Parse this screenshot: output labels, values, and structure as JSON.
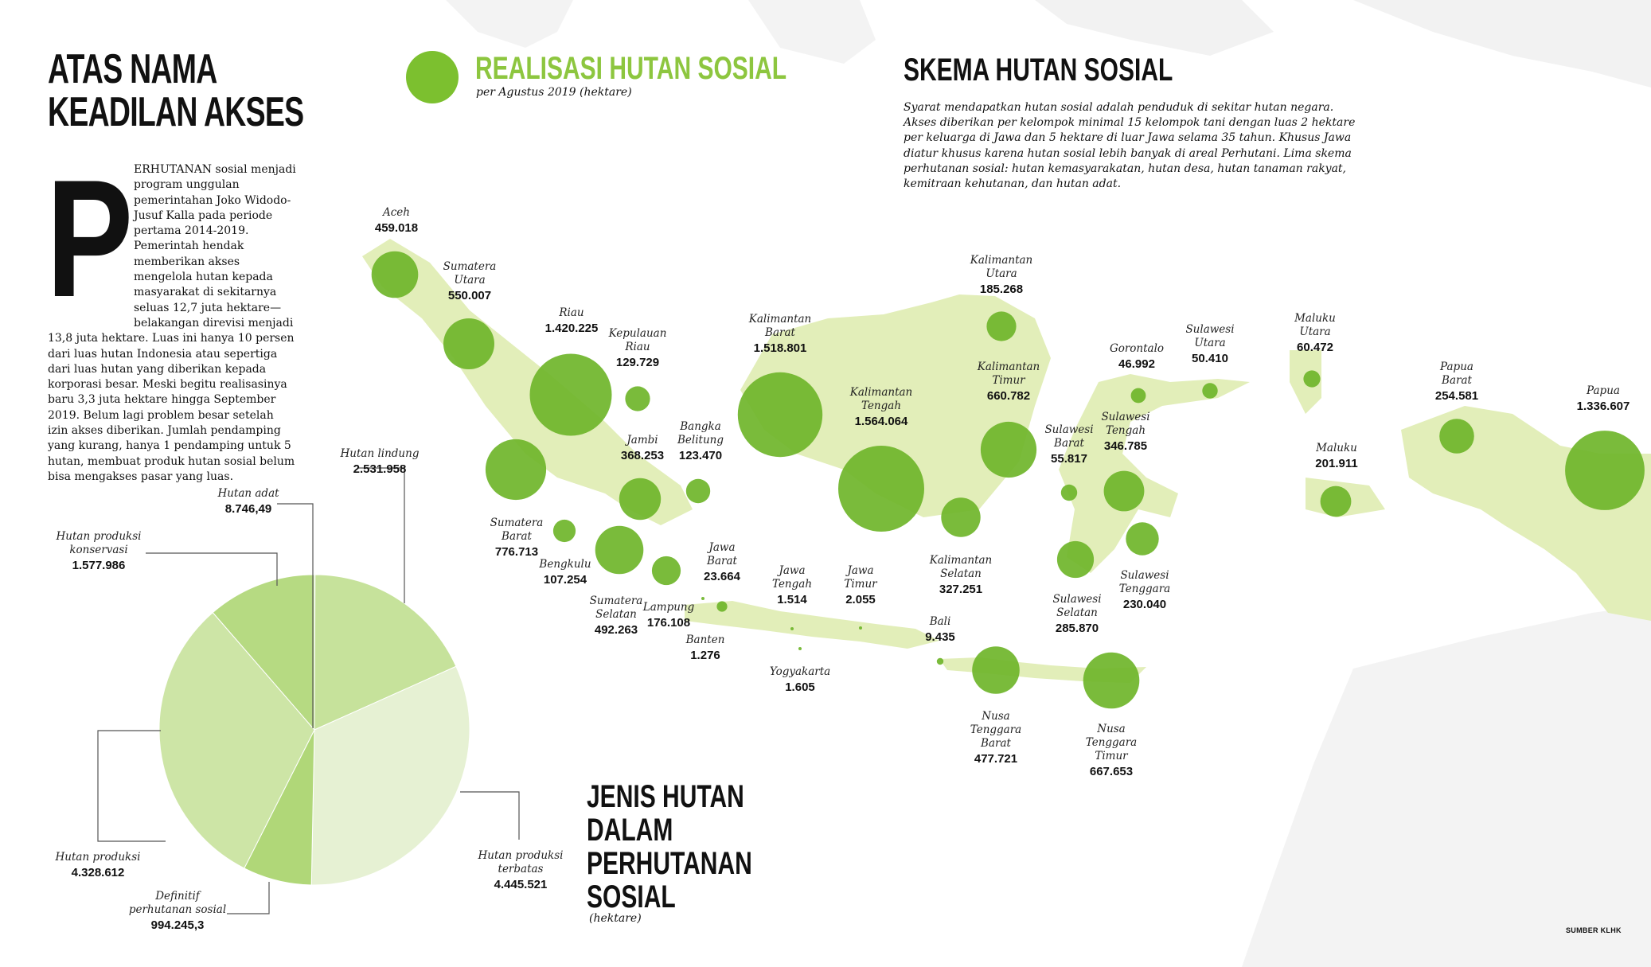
{
  "headline": {
    "line1": "ATAS NAMA",
    "line2": "KEADILAN AKSES"
  },
  "intro": {
    "dropcap": "P",
    "text": "ERHUTANAN sosial menjadi program unggulan pemerintahan Joko Widodo-Jusuf Kalla pada periode pertama 2014-2019. Pemerintah hendak memberikan akses mengelola hutan kepada masyarakat di sekitarnya seluas 12,7 juta hektare—belakangan direvisi menjadi 13,8 juta hektare. Luas ini hanya 10 persen dari luas hutan Indonesia atau sepertiga dari luas hutan yang diberikan kepada korporasi besar. Meski begitu realisasinya baru 3,3 juta hektare hingga September 2019. Belum lagi problem besar setelah izin akses diberikan. Jumlah pendamping yang kurang, hanya 1 pendamping untuk 5 hutan, membuat produk hutan sosial belum bisa mengakses pasar yang luas."
  },
  "realisasi": {
    "title": "REALISASI HUTAN SOSIAL",
    "subtitle": "per Agustus 2019 (hektare)"
  },
  "skema": {
    "title": "SKEMA HUTAN SOSIAL",
    "body": "Syarat mendapatkan hutan sosial adalah penduduk di sekitar hutan negara. Akses diberikan per kelompok minimal 15 kelompok tani dengan luas 2 hektare per keluarga di Jawa dan 5 hektare di luar Jawa selama 35 tahun. Khusus Jawa diatur khusus karena hutan sosial lebih banyak di areal Perhutani. Lima skema perhutanan sosial: hutan kemasyarakatan, hutan desa, hutan tanaman rakyat, kemitraan kehutanan, dan hutan adat."
  },
  "jenis": {
    "title_lines": [
      "JENIS HUTAN",
      "DALAM",
      "PERHUTANAN",
      "SOSIAL"
    ],
    "subtitle": "(hektare)"
  },
  "source": "SUMBER KLHK",
  "colors": {
    "accent": "#8dc63f",
    "bubble": "#6fb52a",
    "land": "#e2eeb9",
    "bg_land": "#f1f1f1"
  },
  "chart_data": [
    {
      "type": "bubble-map",
      "title": "REALISASI HUTAN SOSIAL",
      "subtitle": "per Agustus 2019 (hektare)",
      "points": [
        {
          "name": "Aceh",
          "value": 459018,
          "value_label": "459.018"
        },
        {
          "name": "Sumatera Utara",
          "value": 550007,
          "value_label": "550.007"
        },
        {
          "name": "Riau",
          "value": 1420225,
          "value_label": "1.420.225"
        },
        {
          "name": "Kepulauan Riau",
          "value": 129729,
          "value_label": "129.729"
        },
        {
          "name": "Sumatera Barat",
          "value": 776713,
          "value_label": "776.713"
        },
        {
          "name": "Jambi",
          "value": 368253,
          "value_label": "368.253"
        },
        {
          "name": "Bangka Belitung",
          "value": 123470,
          "value_label": "123.470"
        },
        {
          "name": "Bengkulu",
          "value": 107254,
          "value_label": "107.254"
        },
        {
          "name": "Sumatera Selatan",
          "value": 492263,
          "value_label": "492.263"
        },
        {
          "name": "Lampung",
          "value": 176108,
          "value_label": "176.108"
        },
        {
          "name": "Banten",
          "value": 1276,
          "value_label": "1.276"
        },
        {
          "name": "Jawa Barat",
          "value": 23664,
          "value_label": "23.664"
        },
        {
          "name": "Jawa Tengah",
          "value": 1514,
          "value_label": "1.514"
        },
        {
          "name": "Yogyakarta",
          "value": 1605,
          "value_label": "1.605"
        },
        {
          "name": "Jawa Timur",
          "value": 2055,
          "value_label": "2.055"
        },
        {
          "name": "Bali",
          "value": 9435,
          "value_label": "9.435"
        },
        {
          "name": "Kalimantan Barat",
          "value": 1518801,
          "value_label": "1.518.801"
        },
        {
          "name": "Kalimantan Tengah",
          "value": 1564064,
          "value_label": "1.564.064"
        },
        {
          "name": "Kalimantan Selatan",
          "value": 327251,
          "value_label": "327.251"
        },
        {
          "name": "Kalimantan Timur",
          "value": 660782,
          "value_label": "660.782"
        },
        {
          "name": "Kalimantan Utara",
          "value": 185268,
          "value_label": "185.268"
        },
        {
          "name": "Nusa Tenggara Barat",
          "value": 477721,
          "value_label": "477.721"
        },
        {
          "name": "Nusa Tenggara Timur",
          "value": 667653,
          "value_label": "667.653"
        },
        {
          "name": "Sulawesi Barat",
          "value": 55817,
          "value_label": "55.817"
        },
        {
          "name": "Sulawesi Tengah",
          "value": 346785,
          "value_label": "346.785"
        },
        {
          "name": "Sulawesi Selatan",
          "value": 285870,
          "value_label": "285.870"
        },
        {
          "name": "Sulawesi Tenggara",
          "value": 230040,
          "value_label": "230.040"
        },
        {
          "name": "Gorontalo",
          "value": 46992,
          "value_label": "46.992"
        },
        {
          "name": "Sulawesi Utara",
          "value": 50410,
          "value_label": "50.410"
        },
        {
          "name": "Maluku Utara",
          "value": 60472,
          "value_label": "60.472"
        },
        {
          "name": "Maluku",
          "value": 201911,
          "value_label": "201.911"
        },
        {
          "name": "Papua Barat",
          "value": 254581,
          "value_label": "254.581"
        },
        {
          "name": "Papua",
          "value": 1336607,
          "value_label": "1.336.607"
        }
      ]
    },
    {
      "type": "pie",
      "title": "JENIS HUTAN DALAM PERHUTANAN SOSIAL",
      "subtitle": "(hektare)",
      "slices": [
        {
          "name": "Hutan adat",
          "value": 8746.49,
          "value_label": "8.746,49",
          "color": "#a8d267"
        },
        {
          "name": "Hutan lindung",
          "value": 2531958,
          "value_label": "2.531.958",
          "color": "#c6e29b"
        },
        {
          "name": "Hutan produksi terbatas",
          "value": 4445521,
          "value_label": "4.445.521",
          "color": "#e6f1d3"
        },
        {
          "name": "Definitif perhutanan sosial",
          "value": 994245.3,
          "value_label": "994.245,3",
          "color": "#b0d778"
        },
        {
          "name": "Hutan produksi",
          "value": 4328612,
          "value_label": "4.328.612",
          "color": "#cde5a6"
        },
        {
          "name": "Hutan produksi konservasi",
          "value": 1577986,
          "value_label": "1.577.986",
          "color": "#b6da82"
        }
      ]
    }
  ]
}
